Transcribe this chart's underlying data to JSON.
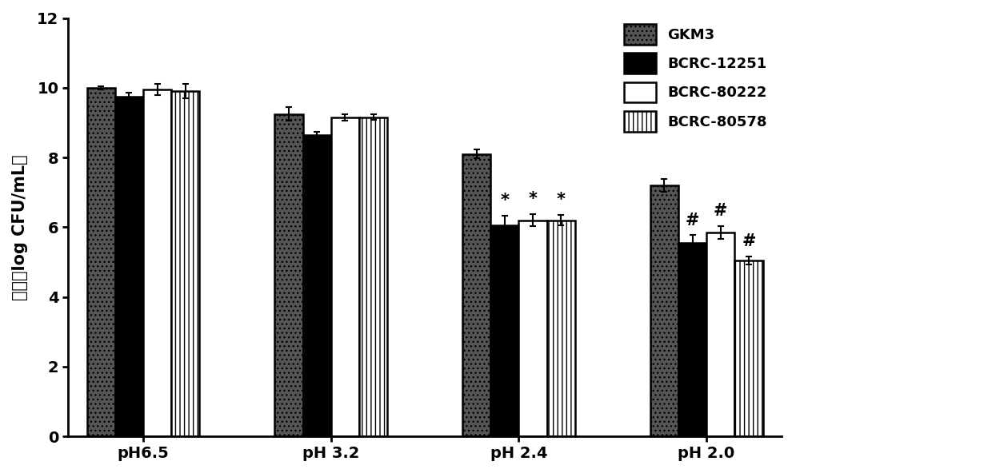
{
  "groups": [
    "pH6.5",
    "pH 3.2",
    "pH 2.4",
    "pH 2.0"
  ],
  "series": [
    "GKM3",
    "BCRC-12251",
    "BCRC-80222",
    "BCRC-80578"
  ],
  "values": [
    [
      10.0,
      9.75,
      9.95,
      9.9
    ],
    [
      9.25,
      8.65,
      9.15,
      9.15
    ],
    [
      8.1,
      6.05,
      6.2,
      6.2
    ],
    [
      7.2,
      5.55,
      5.85,
      5.05
    ]
  ],
  "errors": [
    [
      0.05,
      0.1,
      0.15,
      0.2
    ],
    [
      0.2,
      0.08,
      0.1,
      0.08
    ],
    [
      0.12,
      0.28,
      0.18,
      0.15
    ],
    [
      0.18,
      0.22,
      0.18,
      0.12
    ]
  ],
  "annotations": [
    [
      null,
      null,
      null,
      null
    ],
    [
      null,
      null,
      null,
      null
    ],
    [
      null,
      "*",
      "*",
      "*"
    ],
    [
      null,
      "#",
      "#",
      "#"
    ]
  ],
  "ylim": [
    0,
    12
  ],
  "yticks": [
    0,
    2,
    4,
    6,
    8,
    10,
    12
  ],
  "ylabel": "菌数（log CFU/mL）",
  "bar_width": 0.15,
  "group_centers": [
    0.3,
    1.3,
    2.3,
    3.3
  ],
  "background_color": "#ffffff",
  "annotation_fontsize": 15,
  "axis_fontsize": 15,
  "legend_fontsize": 13,
  "tick_fontsize": 14
}
